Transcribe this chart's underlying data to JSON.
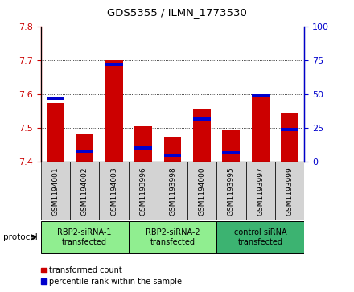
{
  "title": "GDS5355 / ILMN_1773530",
  "samples": [
    "GSM1194001",
    "GSM1194002",
    "GSM1194003",
    "GSM1193996",
    "GSM1193998",
    "GSM1194000",
    "GSM1193995",
    "GSM1193997",
    "GSM1193999"
  ],
  "red_values": [
    7.575,
    7.485,
    7.7,
    7.505,
    7.475,
    7.555,
    7.495,
    7.595,
    7.545
  ],
  "blue_values_pct": [
    47,
    8,
    72,
    10,
    5,
    32,
    7,
    49,
    24
  ],
  "ylim": [
    7.4,
    7.8
  ],
  "y2lim": [
    0,
    100
  ],
  "yticks": [
    7.4,
    7.5,
    7.6,
    7.7,
    7.8
  ],
  "y2ticks": [
    0,
    25,
    50,
    75,
    100
  ],
  "ybaseline": 7.4,
  "protocols": [
    {
      "label": "RBP2-siRNA-1\ntransfected",
      "indices": [
        0,
        1,
        2
      ],
      "color": "#90ee90"
    },
    {
      "label": "RBP2-siRNA-2\ntransfected",
      "indices": [
        3,
        4,
        5
      ],
      "color": "#90ee90"
    },
    {
      "label": "control siRNA\ntransfected",
      "indices": [
        6,
        7,
        8
      ],
      "color": "#3cb371"
    }
  ],
  "bar_width": 0.6,
  "red_color": "#cc0000",
  "blue_color": "#0000cc",
  "sample_bg": "#d3d3d3",
  "plot_bg": "#ffffff",
  "legend_red": "transformed count",
  "legend_blue": "percentile rank within the sample",
  "protocol_label": "protocol"
}
